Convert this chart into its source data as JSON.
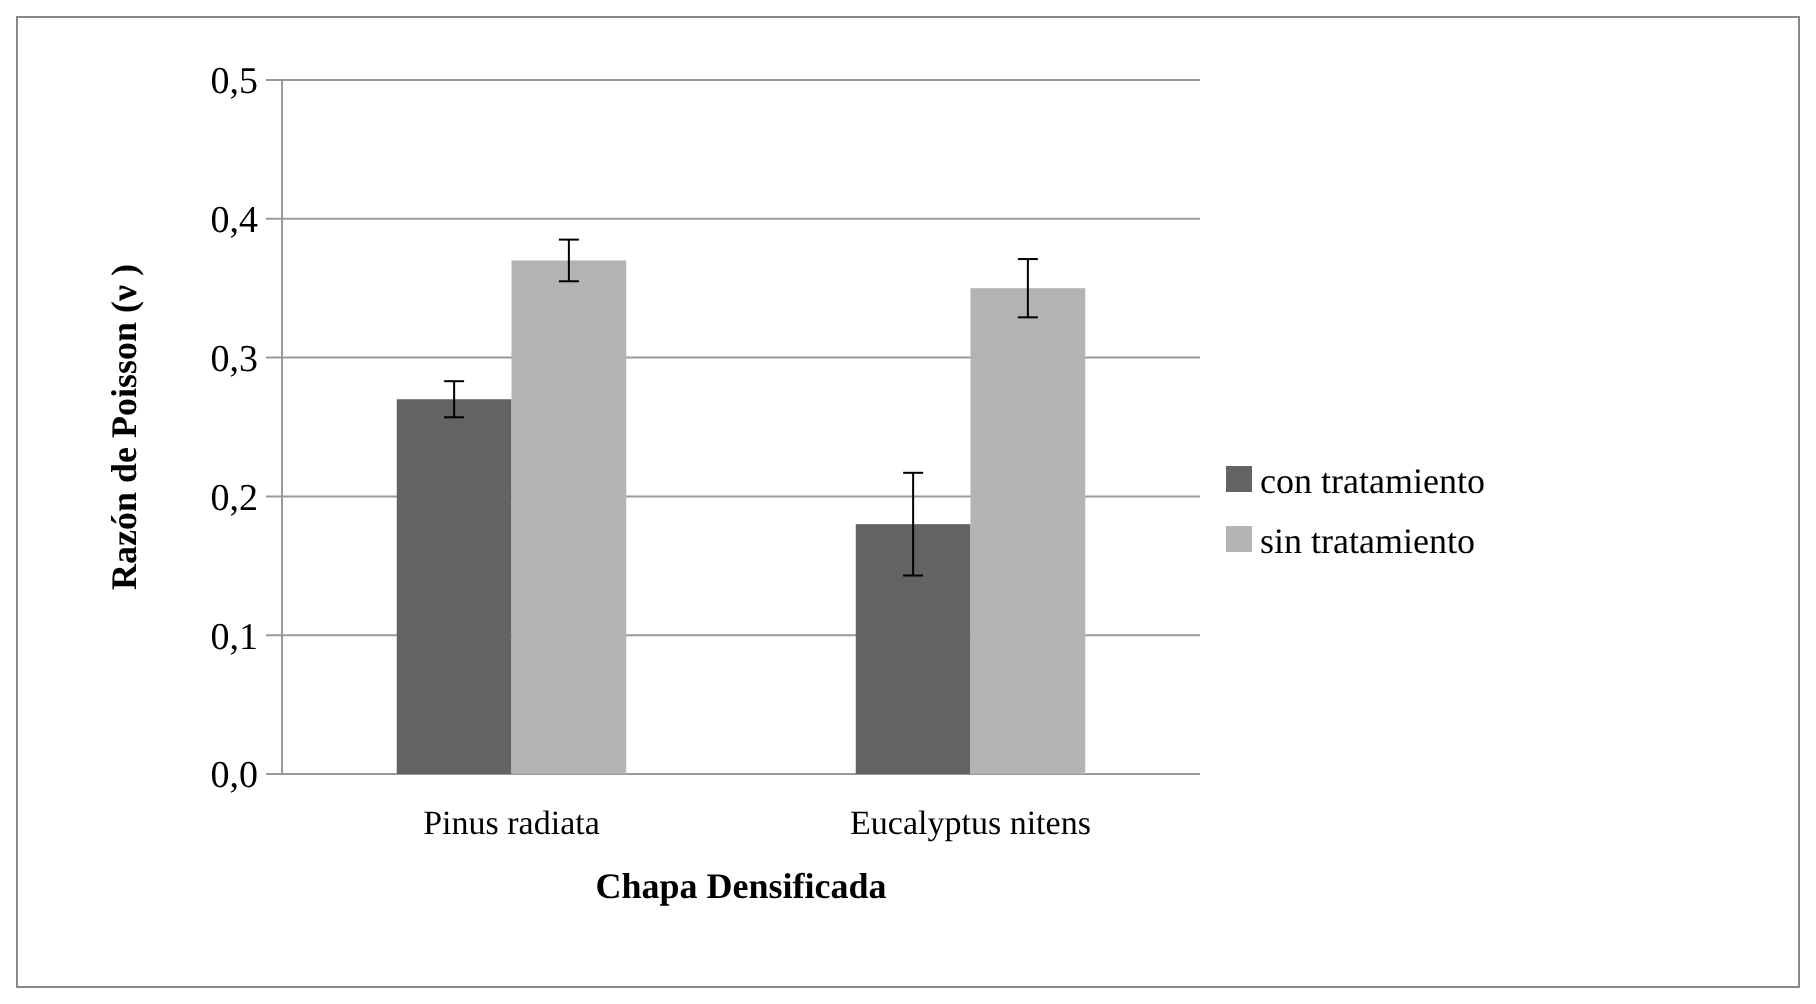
{
  "chart_data": {
    "type": "bar",
    "xlabel": "Chapa Densificada",
    "ylabel": "Razón de Poisson (ν )",
    "categories": [
      "Pinus radiata",
      "Eucalyptus nitens"
    ],
    "series": [
      {
        "name": "con tratamiento",
        "color": "#636363",
        "values": [
          0.27,
          0.18
        ],
        "errors": [
          0.013,
          0.037
        ]
      },
      {
        "name": "sin tratamiento",
        "color": "#b3b3b3",
        "values": [
          0.37,
          0.35
        ],
        "errors": [
          0.015,
          0.021
        ]
      }
    ],
    "ylim": [
      0,
      0.5
    ],
    "yticks": [
      {
        "value": 0,
        "label": "0,0"
      },
      {
        "value": 0.1,
        "label": "0,1"
      },
      {
        "value": 0.2,
        "label": "0,2"
      },
      {
        "value": 0.3,
        "label": "0,3"
      },
      {
        "value": 0.4,
        "label": "0,4"
      },
      {
        "value": 0.5,
        "label": "0,5"
      }
    ],
    "grid": "y",
    "legend": "right"
  }
}
